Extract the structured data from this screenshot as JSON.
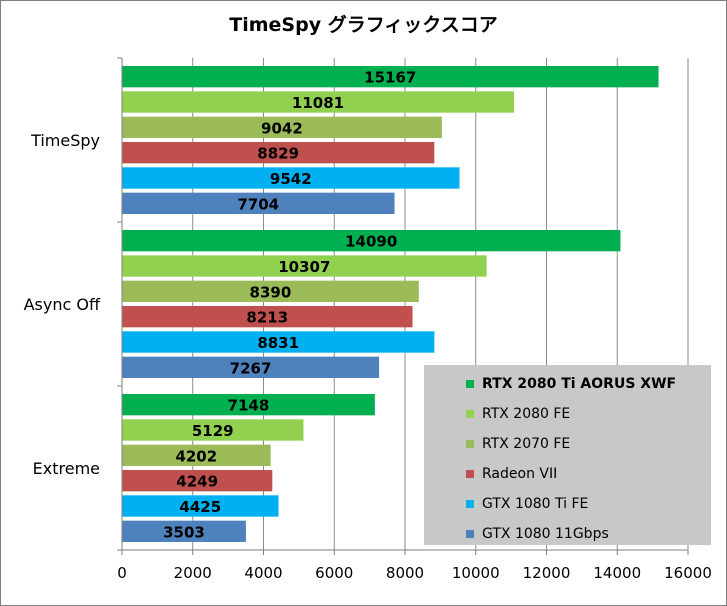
{
  "chart_data": {
    "type": "bar",
    "orientation": "horizontal",
    "title": "TimeSpy グラフィックスコア",
    "categories": [
      "TimeSpy",
      "Async Off",
      "Extreme"
    ],
    "series": [
      {
        "name": "RTX 2080 Ti AORUS XWF",
        "color": "#00b050",
        "values": [
          15167,
          14090,
          7148
        ]
      },
      {
        "name": "RTX 2080 FE",
        "color": "#92d050",
        "values": [
          11081,
          10307,
          5129
        ]
      },
      {
        "name": "RTX 2070 FE",
        "color": "#9bbb59",
        "values": [
          9042,
          8390,
          4202
        ]
      },
      {
        "name": "Radeon VII",
        "color": "#c0504d",
        "values": [
          8829,
          8213,
          4249
        ]
      },
      {
        "name": "GTX 1080 Ti FE",
        "color": "#00b0f0",
        "values": [
          9542,
          8831,
          4425
        ]
      },
      {
        "name": "GTX 1080 11Gbps",
        "color": "#4f81bd",
        "values": [
          7704,
          7267,
          3503
        ]
      }
    ],
    "xlim": [
      0,
      16000
    ],
    "xticks": [
      "0",
      "2000",
      "4000",
      "6000",
      "8000",
      "10000",
      "12000",
      "14000",
      "16000"
    ],
    "grid": true,
    "legend_position": "bottom-right"
  }
}
